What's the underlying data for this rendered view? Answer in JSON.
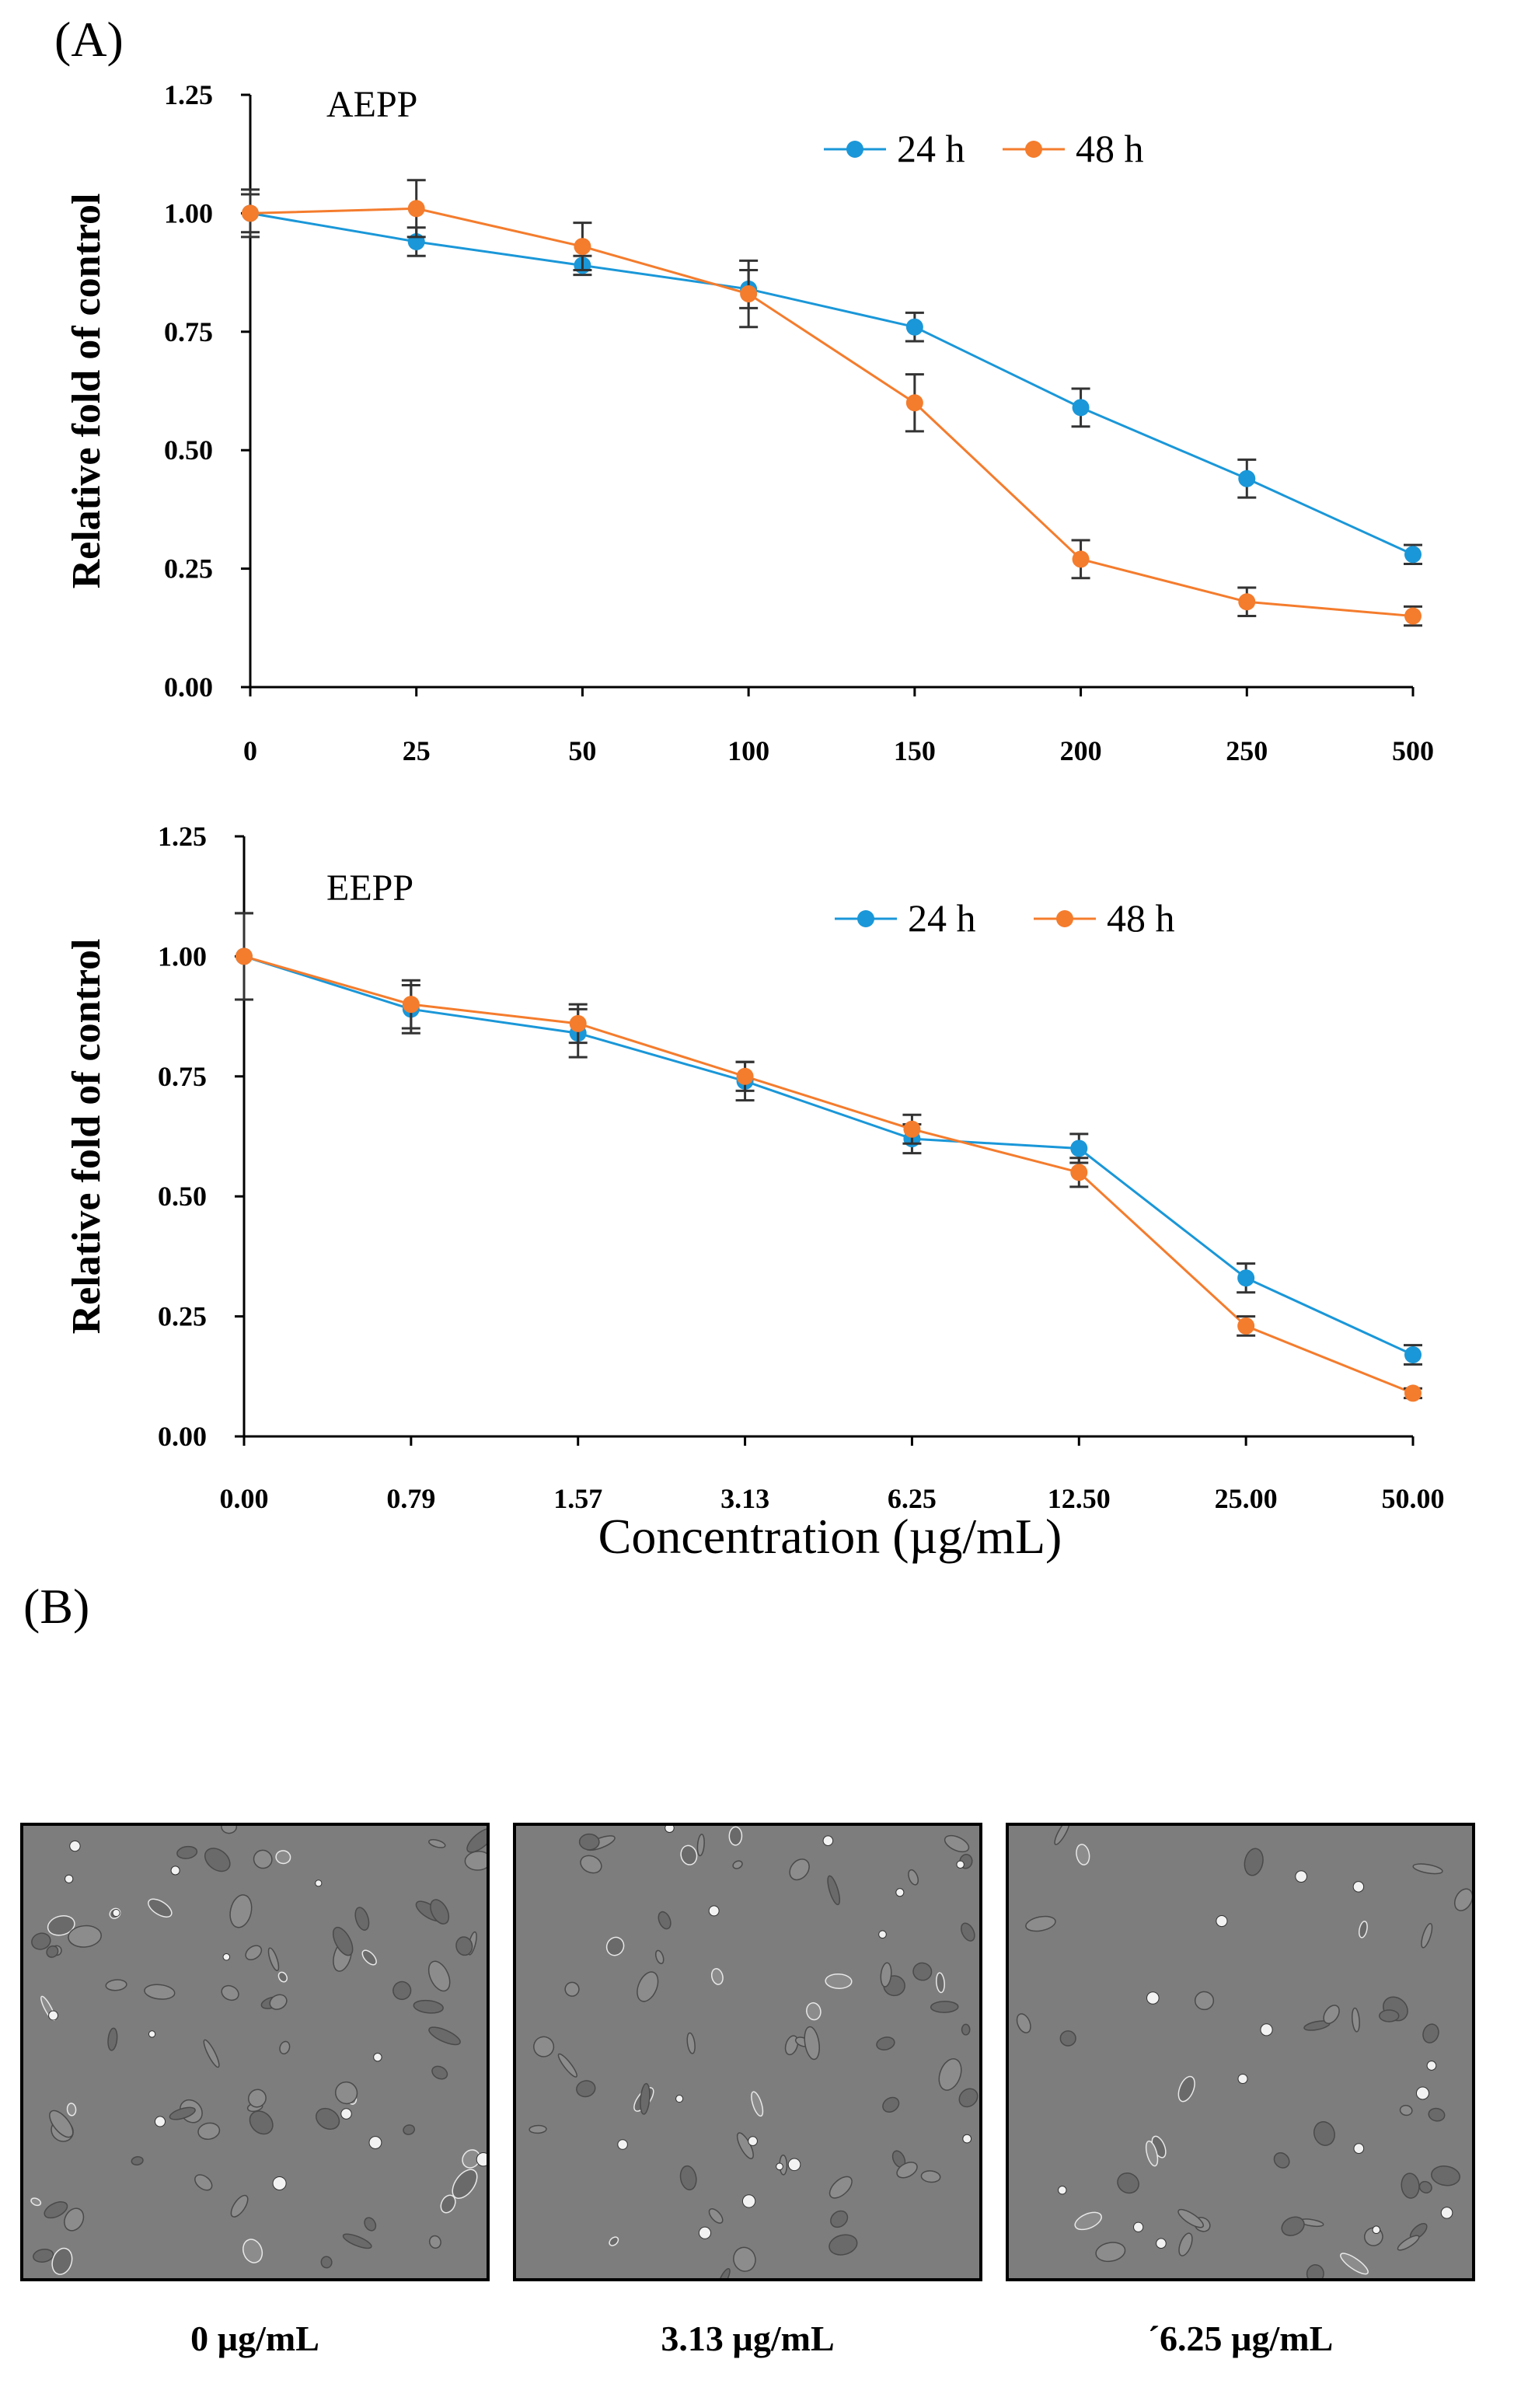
{
  "panel_a_label": "(A)",
  "panel_b_label": "(B)",
  "colors": {
    "series_24h": "#1a97d8",
    "series_48h": "#f47c2d",
    "axis": "#000000",
    "error_bar": "#333333"
  },
  "chart_data": [
    {
      "type": "line",
      "title": "AEPP",
      "ylabel": "Relative fold of control",
      "xlabel": "",
      "ylim": [
        0,
        1.25
      ],
      "yticks": [
        "0.00",
        "0.25",
        "0.50",
        "0.75",
        "1.00",
        "1.25"
      ],
      "categories": [
        "0",
        "25",
        "50",
        "100",
        "150",
        "200",
        "250",
        "500"
      ],
      "legend_position": "top-right",
      "series": [
        {
          "name": "24 h",
          "values": [
            1.0,
            0.94,
            0.89,
            0.84,
            0.76,
            0.59,
            0.44,
            0.28
          ],
          "errors": [
            0.04,
            0.03,
            0.02,
            0.04,
            0.03,
            0.04,
            0.04,
            0.02
          ]
        },
        {
          "name": "48 h",
          "values": [
            1.0,
            1.01,
            0.93,
            0.83,
            0.6,
            0.27,
            0.18,
            0.15
          ],
          "errors": [
            0.05,
            0.06,
            0.05,
            0.07,
            0.06,
            0.04,
            0.03,
            0.02
          ]
        }
      ]
    },
    {
      "type": "line",
      "title": "EEPP",
      "ylabel": "Relative fold of control",
      "xlabel": "Concentration (µg/mL)",
      "ylim": [
        0,
        1.25
      ],
      "yticks": [
        "0.00",
        "0.25",
        "0.50",
        "0.75",
        "1.00",
        "1.25"
      ],
      "categories": [
        "0.00",
        "0.79",
        "1.57",
        "3.13",
        "6.25",
        "12.50",
        "25.00",
        "50.00"
      ],
      "legend_position": "top-right",
      "series": [
        {
          "name": "24 h",
          "values": [
            1.0,
            0.89,
            0.84,
            0.74,
            0.62,
            0.6,
            0.33,
            0.17
          ],
          "errors": [
            0.09,
            0.05,
            0.05,
            0.04,
            0.03,
            0.03,
            0.03,
            0.02
          ]
        },
        {
          "name": "48 h",
          "values": [
            1.0,
            0.9,
            0.86,
            0.75,
            0.64,
            0.55,
            0.23,
            0.09
          ],
          "errors": [
            0.09,
            0.05,
            0.04,
            0.03,
            0.03,
            0.03,
            0.02,
            0.01
          ]
        }
      ]
    }
  ],
  "micrographs": [
    {
      "caption": "0 µg/mL"
    },
    {
      "caption": "3.13 µg/mL"
    },
    {
      "caption": "´6.25 µg/mL"
    }
  ]
}
